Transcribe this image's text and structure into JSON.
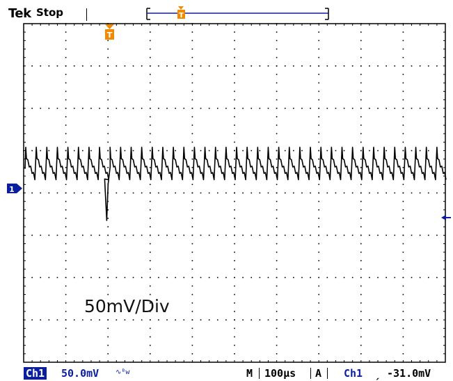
{
  "header": {
    "brand": "Tek",
    "acquisition_state": "Stop"
  },
  "markers": {
    "trigger_position_glyph": "T",
    "channel1_glyph": "1"
  },
  "annotation": "50mV/Div",
  "readout": {
    "channel": "Ch1",
    "volts_per_div": "50.0mV",
    "bandwidth_limit_icon": "bandwidth-limit-icon",
    "timebase_prefix": "M",
    "time_per_div": "100µs",
    "trigger_mode": "A",
    "trigger_source": "Ch1",
    "trigger_slope_icon": "falling-edge-icon",
    "trigger_slope_glyph": "⌐",
    "trigger_level": "-31.0mV"
  },
  "colors": {
    "channel1": "#0b1f9e",
    "trigger": "#f08a00",
    "graticule": "#000000",
    "trace": "#000000"
  },
  "waveform": {
    "divisions_x": 10,
    "divisions_y": 8,
    "ripple_cycles": 40,
    "ripple_pp_div": 0.6,
    "glitch_depth_div": 1.4,
    "glitch_after_cycle": 7,
    "baseline_div_above_center": 0.75,
    "trigger_level_div_above_center": -0.75
  }
}
